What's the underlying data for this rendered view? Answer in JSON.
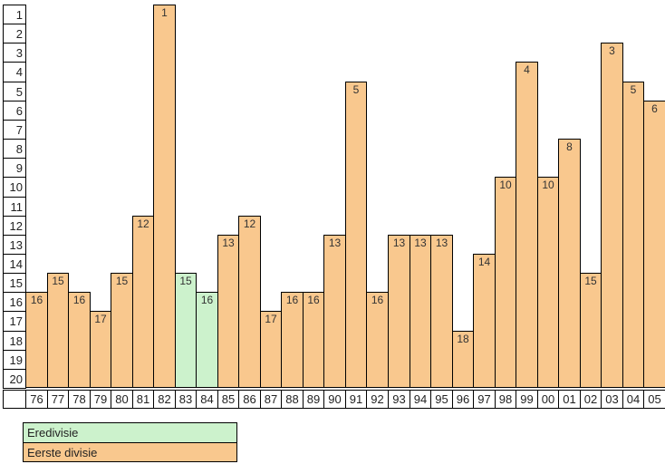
{
  "chart_data": {
    "type": "bar",
    "title": "",
    "xlabel": "",
    "ylabel": "",
    "x": [
      "76",
      "77",
      "78",
      "79",
      "80",
      "81",
      "82",
      "83",
      "84",
      "85",
      "86",
      "87",
      "88",
      "89",
      "90",
      "91",
      "92",
      "93",
      "94",
      "95",
      "96",
      "97",
      "98",
      "99",
      "00",
      "01",
      "02",
      "03",
      "04",
      "05"
    ],
    "values": [
      16,
      15,
      16,
      17,
      15,
      12,
      1,
      15,
      16,
      13,
      12,
      17,
      16,
      16,
      13,
      5,
      16,
      13,
      13,
      13,
      18,
      14,
      10,
      4,
      10,
      8,
      15,
      3,
      5,
      6
    ],
    "divisions": [
      "eerste",
      "eerste",
      "eerste",
      "eerste",
      "eerste",
      "eerste",
      "eerste",
      "eredivisie",
      "eredivisie",
      "eerste",
      "eerste",
      "eerste",
      "eerste",
      "eerste",
      "eerste",
      "eerste",
      "eerste",
      "eerste",
      "eerste",
      "eerste",
      "eerste",
      "eerste",
      "eerste",
      "eerste",
      "eerste",
      "eerste",
      "eerste",
      "eerste",
      "eerste",
      "eerste"
    ],
    "y_axis_positions": [
      1,
      2,
      3,
      4,
      5,
      6,
      7,
      8,
      9,
      10,
      11,
      12,
      13,
      14,
      15,
      16,
      17,
      18,
      19,
      20
    ],
    "ylim": [
      20,
      1
    ],
    "y_inverted": true,
    "grid": false,
    "bar_labels_visible": true,
    "legend_position": "bottom-left",
    "legend": [
      {
        "label": "Eredivisie",
        "key": "eredivisie",
        "color": "#ccf2cc"
      },
      {
        "label": "Eerste divisie",
        "key": "eerste",
        "color": "#f9c88e"
      }
    ],
    "colors": {
      "eredivisie": "#ccf2cc",
      "eerste": "#f9c88e",
      "border": "#000000",
      "background": "#ffffff"
    }
  }
}
